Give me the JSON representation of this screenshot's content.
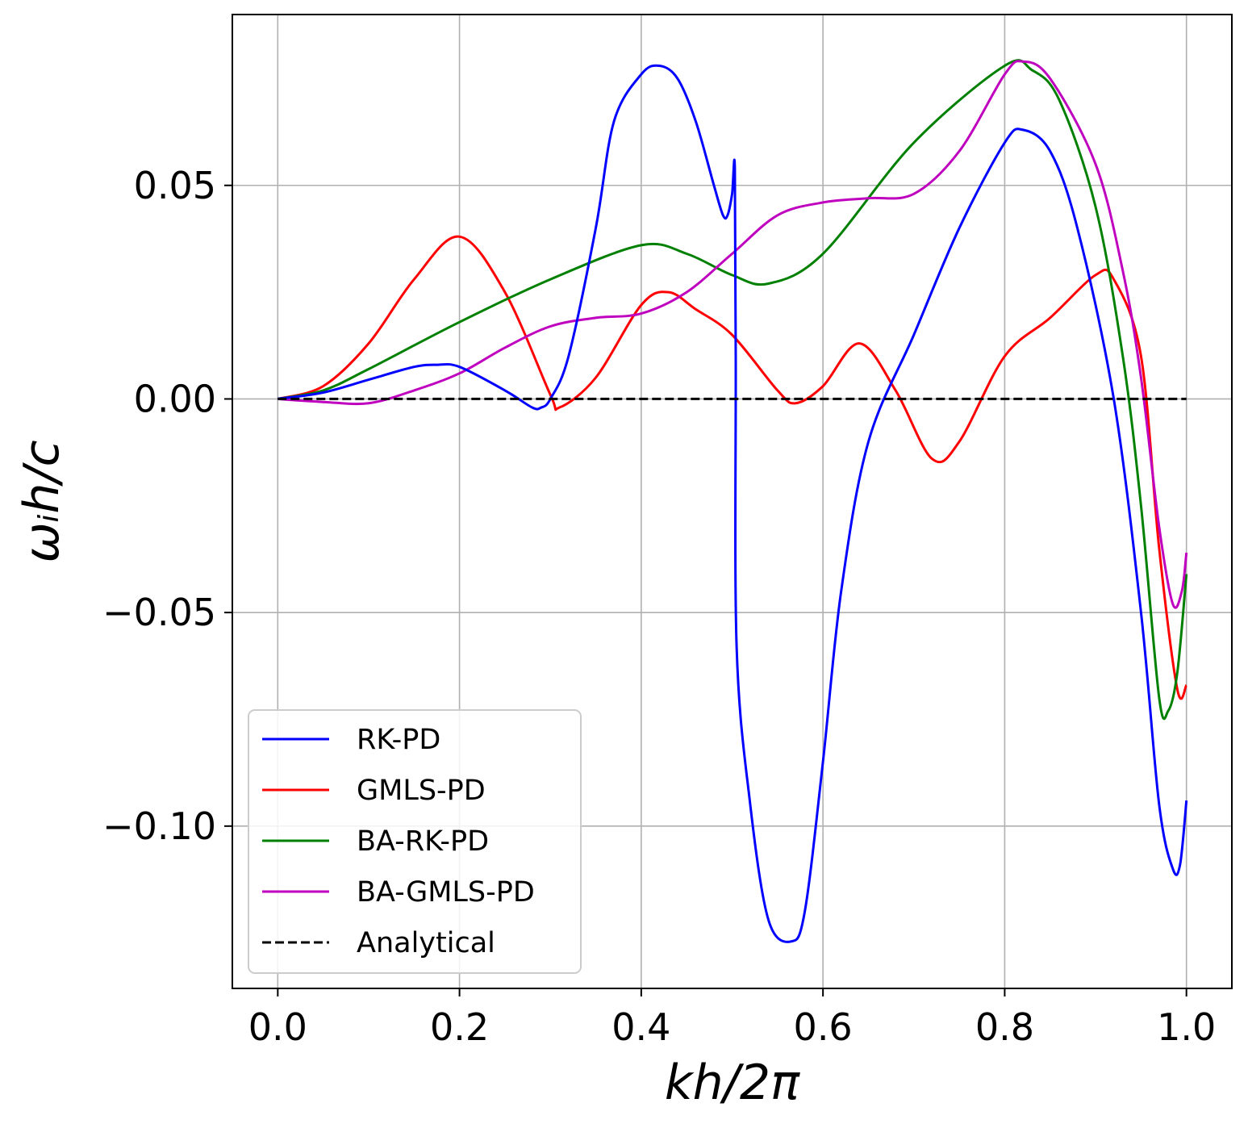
{
  "chart_data": {
    "type": "line",
    "title": "",
    "xlabel": "kh/2π",
    "ylabel": "ωᵢh/c",
    "xlim": [
      -0.05,
      1.05
    ],
    "ylim": [
      -0.138,
      0.09
    ],
    "x_ticks": [
      0.0,
      0.2,
      0.4,
      0.6,
      0.8,
      1.0
    ],
    "x_tick_labels": [
      "0.0",
      "0.2",
      "0.4",
      "0.6",
      "0.8",
      "1.0"
    ],
    "y_ticks": [
      0.05,
      0.0,
      -0.05,
      -0.1
    ],
    "y_tick_labels": [
      "0.05",
      "0.00",
      "−0.05",
      "−0.10"
    ],
    "grid": true,
    "legend_position": "lower-left",
    "series": [
      {
        "name": "RK-PD",
        "color": "#0000ff",
        "dash": "solid",
        "x": [
          0,
          0.05,
          0.1,
          0.15,
          0.175,
          0.2,
          0.25,
          0.28,
          0.29,
          0.3,
          0.32,
          0.35,
          0.37,
          0.4,
          0.42,
          0.44,
          0.46,
          0.48,
          0.49,
          0.495,
          0.5,
          0.503,
          0.504,
          0.505,
          0.52,
          0.54,
          0.565,
          0.58,
          0.6,
          0.62,
          0.65,
          0.7,
          0.75,
          0.8,
          0.82,
          0.85,
          0.88,
          0.92,
          0.95,
          0.97,
          0.985,
          0.993,
          1.0
        ],
        "y": [
          0,
          0.0015,
          0.0045,
          0.0075,
          0.008,
          0.0075,
          0.002,
          -0.002,
          -0.002,
          0.0,
          0.01,
          0.04,
          0.065,
          0.076,
          0.078,
          0.075,
          0.065,
          0.05,
          0.043,
          0.043,
          0.048,
          0.054,
          0.01,
          -0.058,
          -0.095,
          -0.122,
          -0.127,
          -0.12,
          -0.085,
          -0.045,
          -0.01,
          0.015,
          0.04,
          0.06,
          0.063,
          0.058,
          0.04,
          0.0,
          -0.05,
          -0.095,
          -0.11,
          -0.109,
          -0.094
        ]
      },
      {
        "name": "GMLS-PD",
        "color": "#ff0000",
        "dash": "solid",
        "x": [
          0,
          0.05,
          0.1,
          0.15,
          0.2,
          0.25,
          0.3,
          0.31,
          0.35,
          0.4,
          0.43,
          0.46,
          0.5,
          0.55,
          0.57,
          0.6,
          0.64,
          0.68,
          0.72,
          0.75,
          0.8,
          0.85,
          0.9,
          0.92,
          0.95,
          0.97,
          0.99,
          1.0
        ],
        "y": [
          0,
          0.003,
          0.013,
          0.028,
          0.038,
          0.025,
          0.001,
          -0.002,
          0.005,
          0.022,
          0.025,
          0.021,
          0.015,
          0.002,
          -0.001,
          0.003,
          0.013,
          0.002,
          -0.014,
          -0.01,
          0.01,
          0.019,
          0.029,
          0.028,
          0.01,
          -0.035,
          -0.068,
          -0.067
        ]
      },
      {
        "name": "BA-RK-PD",
        "color": "#008000",
        "dash": "solid",
        "x": [
          0,
          0.05,
          0.1,
          0.2,
          0.3,
          0.4,
          0.45,
          0.5,
          0.54,
          0.6,
          0.7,
          0.8,
          0.83,
          0.86,
          0.9,
          0.93,
          0.95,
          0.97,
          0.98,
          0.99,
          1.0
        ],
        "y": [
          0,
          0.002,
          0.007,
          0.018,
          0.028,
          0.036,
          0.034,
          0.029,
          0.027,
          0.034,
          0.06,
          0.078,
          0.077,
          0.07,
          0.045,
          0.01,
          -0.025,
          -0.07,
          -0.073,
          -0.064,
          -0.041
        ]
      },
      {
        "name": "BA-GMLS-PD",
        "color": "#bf00bf",
        "dash": "solid",
        "x": [
          0,
          0.05,
          0.1,
          0.15,
          0.2,
          0.25,
          0.3,
          0.35,
          0.4,
          0.45,
          0.5,
          0.55,
          0.6,
          0.65,
          0.7,
          0.75,
          0.8,
          0.82,
          0.85,
          0.9,
          0.93,
          0.95,
          0.97,
          0.985,
          0.995,
          1.0
        ],
        "y": [
          0,
          -0.0007,
          -0.001,
          0.002,
          0.006,
          0.012,
          0.017,
          0.019,
          0.02,
          0.025,
          0.034,
          0.043,
          0.046,
          0.047,
          0.048,
          0.058,
          0.076,
          0.079,
          0.075,
          0.055,
          0.03,
          0.005,
          -0.03,
          -0.048,
          -0.045,
          -0.036
        ]
      },
      {
        "name": "Analytical",
        "color": "#000000",
        "dash": "dashed",
        "x": [
          0,
          1.0
        ],
        "y": [
          0,
          0
        ]
      }
    ]
  }
}
